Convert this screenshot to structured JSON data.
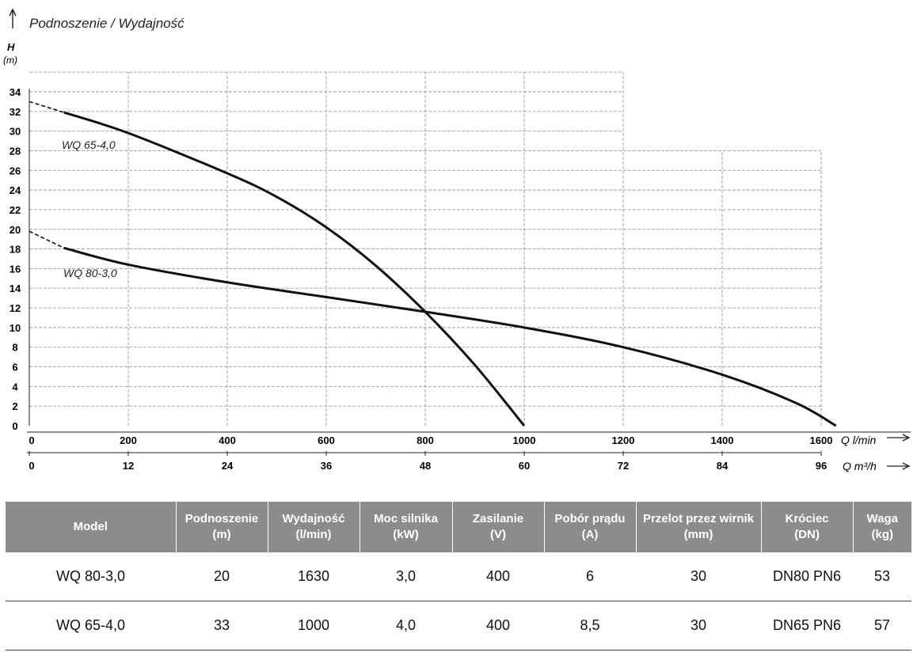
{
  "chart_data": {
    "type": "line",
    "title": "Podnoszenie / Wydajność",
    "ylabel": "H",
    "yunit": "(m)",
    "xlabel": "Q l/min",
    "x2label": "Q m³/h",
    "ylim": [
      0,
      34
    ],
    "xlim": [
      0,
      1600
    ],
    "y_ticks": [
      "0",
      "2",
      "4",
      "6",
      "8",
      "10",
      "12",
      "14",
      "16",
      "18",
      "20",
      "22",
      "24",
      "26",
      "28",
      "30",
      "32",
      "34"
    ],
    "x_ticks": [
      "0",
      "200",
      "400",
      "600",
      "800",
      "1000",
      "1200",
      "1400",
      "1600"
    ],
    "x2_ticks": [
      "0",
      "12",
      "24",
      "36",
      "48",
      "60",
      "72",
      "84",
      "96"
    ],
    "grid": true,
    "series": [
      {
        "name": "WQ 65-4,0",
        "dashed_start": [
          [
            0,
            33.0
          ],
          [
            70,
            31.9
          ]
        ],
        "points": [
          [
            70,
            31.9
          ],
          [
            200,
            29.8
          ],
          [
            400,
            25.7
          ],
          [
            500,
            23.3
          ],
          [
            600,
            20.2
          ],
          [
            700,
            16.3
          ],
          [
            800,
            11.6
          ],
          [
            900,
            6.2
          ],
          [
            1000,
            0
          ]
        ]
      },
      {
        "name": "WQ 80-3,0",
        "dashed_start": [
          [
            0,
            19.8
          ],
          [
            70,
            18.1
          ]
        ],
        "points": [
          [
            70,
            18.1
          ],
          [
            200,
            16.4
          ],
          [
            400,
            14.6
          ],
          [
            600,
            13.1
          ],
          [
            800,
            11.6
          ],
          [
            1000,
            10.0
          ],
          [
            1200,
            8.0
          ],
          [
            1400,
            5.2
          ],
          [
            1550,
            2.3
          ],
          [
            1630,
            0
          ]
        ]
      }
    ]
  },
  "table": {
    "headers": [
      [
        "Model"
      ],
      [
        "Podnoszenie",
        "(m)"
      ],
      [
        "Wydajność",
        "(l/min)"
      ],
      [
        "Moc silnika",
        "(kW)"
      ],
      [
        "Zasilanie",
        "(V)"
      ],
      [
        "Pobór prądu",
        "(A)"
      ],
      [
        "Przelot przez wirnik",
        "(mm)"
      ],
      [
        "Króciec",
        "(DN)"
      ],
      [
        "Waga",
        "(kg)"
      ]
    ],
    "rows": [
      [
        "WQ 80-3,0",
        "20",
        "1630",
        "3,0",
        "400",
        "6",
        "30",
        "DN80 PN6",
        "53"
      ],
      [
        "WQ 65-4,0",
        "33",
        "1000",
        "4,0",
        "400",
        "8,5",
        "30",
        "DN65 PN6",
        "57"
      ]
    ]
  }
}
